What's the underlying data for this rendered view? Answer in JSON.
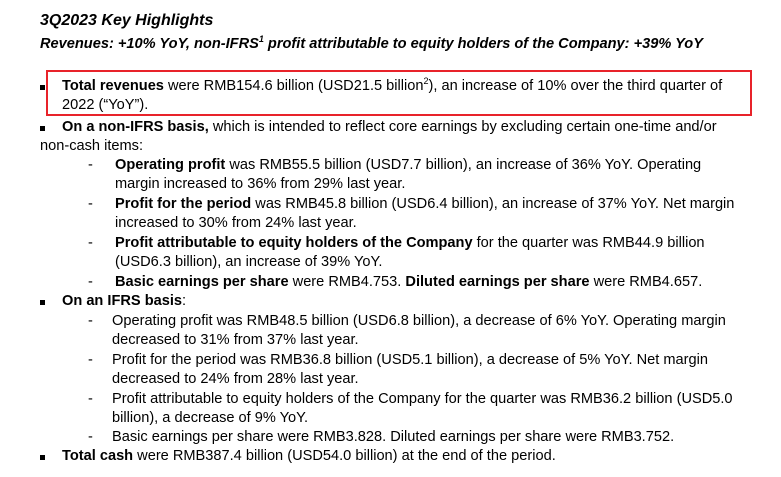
{
  "heading": {
    "title": "3Q2023 Key Highlights",
    "subtitle_pre": "Revenues: +10% YoY, non-IFRS",
    "subtitle_sup": "1",
    "subtitle_post": "  profit attributable to equity holders of the Company: +39% YoY"
  },
  "highlight_color": "#e8232a",
  "items": {
    "total_revenues": {
      "bold": "Total revenues",
      "text1": " were RMB154.6 billion (USD21.5 billion",
      "sup": "2",
      "text2": "), an increase of 10% over the third quarter of",
      "line2": "2022 (“YoY”)."
    },
    "non_ifrs": {
      "bold": "On a non-IFRS basis,",
      "text1": " which is intended to reflect core earnings by excluding certain one-time and/or",
      "line2": "non-cash items:",
      "sub": {
        "op_bold": "Operating profit",
        "op_text1": " was RMB55.5 billion (USD7.7 billion), an increase of 36% YoY. Operating",
        "op_line2": "margin increased to 36% from 29% last year.",
        "pp_bold": "Profit for the period",
        "pp_text1": " was RMB45.8 billion (USD6.4 billion), an increase of 37% YoY. Net margin",
        "pp_line2": "increased to 30% from 24% last year.",
        "pa_bold": "Profit attributable to equity holders of the Company",
        "pa_text1": " for the quarter was RMB44.9 billion",
        "pa_line2": "(USD6.3 billion), an increase of 39% YoY.",
        "eps_bold1": "Basic earnings per share",
        "eps_text1": " were RMB4.753. ",
        "eps_bold2": "Diluted earnings per share",
        "eps_text2": " were RMB4.657."
      }
    },
    "ifrs": {
      "bold": "On an IFRS basis",
      "text1": ":",
      "sub": {
        "op_line1": "Operating profit was RMB48.5 billion (USD6.8 billion), a decrease of 6% YoY. Operating margin",
        "op_line2": "decreased to 31% from 37% last year.",
        "pp_line1": "Profit for the period was RMB36.8 billion (USD5.1 billion), a decrease of 5% YoY. Net margin",
        "pp_line2": "decreased to 24% from 28% last year.",
        "pa_line1": "Profit attributable to equity holders of the Company for the quarter was RMB36.2 billion (USD5.0",
        "pa_line2": "billion), a decrease of 9% YoY.",
        "eps_line1": "Basic earnings per share were RMB3.828. Diluted earnings per share were RMB3.752."
      }
    },
    "total_cash": {
      "bold": "Total cash",
      "text1": " were RMB387.4 billion (USD54.0 billion) at the end of the period."
    }
  },
  "dash_char": "-"
}
